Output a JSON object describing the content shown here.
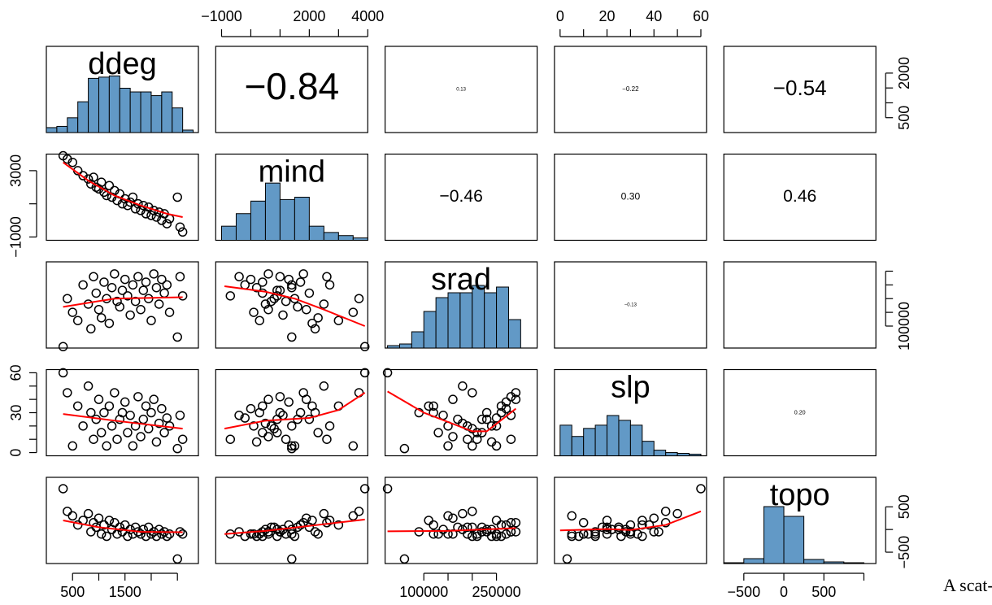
{
  "chart_data": {
    "type": "scatter_matrix",
    "point_color": "#000000",
    "smooth_color": "#ff0000",
    "hist_color": "#6299c6",
    "caption": "A scat-",
    "variables": [
      {
        "name": "ddeg",
        "lim": [
          0,
          2900
        ],
        "xticks": [
          500,
          {
            "value": 1000,
            "label": null
          },
          1500,
          {
            "value": 2000,
            "label": null
          },
          {
            "value": 2500,
            "label": null
          }
        ],
        "yticks": [
          500,
          {
            "value": 1000,
            "label": null
          },
          {
            "value": 1500,
            "label": null
          },
          2000
        ],
        "values": [
          320,
          400,
          500,
          600,
          700,
          800,
          850,
          900,
          950,
          1000,
          1050,
          1100,
          1150,
          1200,
          1250,
          1300,
          1350,
          1400,
          1450,
          1500,
          1550,
          1600,
          1650,
          1700,
          1750,
          1800,
          1850,
          1900,
          1950,
          2000,
          2050,
          2100,
          2150,
          2200,
          2250,
          2300,
          2350,
          2500,
          2550,
          2600
        ],
        "hist": {
          "bins": [
            0,
            200,
            400,
            600,
            800,
            1000,
            1200,
            1400,
            1600,
            1800,
            2000,
            2200,
            2400,
            2600,
            2800
          ],
          "counts": [
            4,
            5,
            12,
            25,
            44,
            45,
            46,
            36,
            33,
            33,
            30,
            33,
            20,
            2
          ],
          "ylim": [
            0,
            70
          ]
        }
      },
      {
        "name": "mind",
        "lim": [
          -1200,
          4000
        ],
        "xticks": [
          {
            "value": -1000,
            "label": "−1000"
          },
          {
            "value": 0,
            "label": null
          },
          {
            "value": 1000,
            "label": null
          },
          2000,
          {
            "value": 3000,
            "label": null
          },
          4000
        ],
        "yticks": [
          {
            "value": -1000,
            "label": "−1000"
          },
          {
            "value": 1000,
            "label": null
          },
          3000
        ],
        "values": [
          3900,
          3700,
          3500,
          3000,
          2700,
          2500,
          2200,
          2600,
          2000,
          1900,
          2300,
          1700,
          1500,
          2100,
          1400,
          1800,
          1200,
          1600,
          1000,
          1300,
          900,
          1100,
          1400,
          700,
          1000,
          600,
          900,
          400,
          800,
          300,
          600,
          200,
          500,
          0,
          400,
          -200,
          100,
          1400,
          -400,
          -700
        ],
        "hist": {
          "bins": [
            -1000,
            -500,
            0,
            500,
            1000,
            1500,
            2000,
            2500,
            3000,
            3500,
            4000
          ],
          "counts": [
            18,
            34,
            50,
            73,
            52,
            55,
            18,
            10,
            6,
            3
          ],
          "ylim": [
            0,
            110
          ]
        }
      },
      {
        "name": "srad",
        "lim": [
          20000,
          334000
        ],
        "xticks": [
          100000,
          {
            "value": 150000,
            "label": null
          },
          {
            "value": 200000,
            "label": null
          },
          250000
        ],
        "yticks": [
          100000,
          {
            "value": 150000,
            "label": null
          },
          {
            "value": 200000,
            "label": null
          },
          {
            "value": 250000,
            "label": null
          },
          {
            "value": 300000,
            "label": null
          }
        ],
        "values": [
          25000,
          200000,
          150000,
          120000,
          250000,
          180000,
          90000,
          280000,
          220000,
          160000,
          130000,
          260000,
          200000,
          110000,
          240000,
          290000,
          190000,
          170000,
          230000,
          270000,
          210000,
          140000,
          250000,
          190000,
          280000,
          160000,
          230000,
          260000,
          200000,
          120000,
          290000,
          240000,
          180000,
          270000,
          220000,
          250000,
          150000,
          60000,
          280000,
          210000
        ],
        "hist": {
          "bins": [
            25000,
            50000,
            75000,
            100000,
            125000,
            150000,
            175000,
            200000,
            225000,
            250000,
            275000,
            300000
          ],
          "counts": [
            3,
            5,
            20,
            45,
            62,
            68,
            68,
            77,
            68,
            75,
            35
          ],
          "ylim": [
            0,
            106
          ]
        }
      },
      {
        "name": "slp",
        "lim": [
          -2.4,
          62.4
        ],
        "xticks": [
          0,
          {
            "value": 10,
            "label": null
          },
          20,
          {
            "value": 30,
            "label": null
          },
          40,
          {
            "value": 50,
            "label": null
          },
          60
        ],
        "yticks": [
          0,
          {
            "value": 10,
            "label": null
          },
          {
            "value": 20,
            "label": null
          },
          30,
          {
            "value": 40,
            "label": null
          },
          {
            "value": 50,
            "label": null
          },
          60
        ],
        "values": [
          60,
          45,
          5,
          35,
          20,
          50,
          30,
          10,
          25,
          40,
          15,
          30,
          5,
          35,
          20,
          45,
          10,
          25,
          30,
          38,
          15,
          28,
          5,
          20,
          42,
          12,
          25,
          35,
          18,
          30,
          40,
          8,
          22,
          33,
          15,
          26,
          20,
          3,
          28,
          10
        ],
        "hist": {
          "bins": [
            0,
            5,
            10,
            15,
            20,
            25,
            30,
            35,
            40,
            45,
            50,
            55,
            60
          ],
          "counts": [
            38,
            24,
            34,
            38,
            50,
            44,
            38,
            18,
            7,
            4,
            3,
            2
          ],
          "ylim": [
            0,
            107
          ]
        }
      },
      {
        "name": "topo",
        "lim": [
          -750,
          1150
        ],
        "xticks": [
          {
            "value": -500,
            "label": "−500"
          },
          0,
          500,
          {
            "value": 1000,
            "label": null
          }
        ],
        "yticks": [
          {
            "value": -500,
            "label": "−500"
          },
          {
            "value": 0,
            "label": null
          },
          500
        ],
        "values": [
          900,
          400,
          300,
          100,
          200,
          350,
          -50,
          150,
          50,
          250,
          -100,
          100,
          -150,
          200,
          0,
          150,
          -100,
          50,
          -50,
          100,
          -150,
          0,
          -100,
          50,
          -50,
          -100,
          0,
          -150,
          50,
          -100,
          -50,
          -150,
          0,
          -100,
          -50,
          -150,
          -100,
          -650,
          -50,
          -100
        ],
        "hist": {
          "bins": [
            -750,
            -500,
            -250,
            0,
            250,
            500,
            750,
            1000
          ],
          "counts": [
            1,
            6,
            70,
            58,
            5,
            2,
            1
          ],
          "ylim": [
            0,
            106
          ]
        }
      }
    ],
    "correlations": {
      "values": [
        -0.84,
        0.13,
        -0.22,
        -0.54,
        -0.46,
        0.3,
        0.46,
        -0.13,
        null,
        0.2
      ],
      "value_labels": [
        "−0.84",
        "0.13",
        "−0.22",
        "−0.54",
        "−0.46",
        "0.30",
        "0.46",
        "−0.13",
        null,
        "0.20"
      ]
    },
    "smooth_lines": [
      {
        "x": [
          320,
          800,
          1300,
          1800,
          2300,
          2600
        ],
        "y": [
          3500,
          2400,
          1500,
          900,
          400,
          200
        ]
      },
      {
        "x": [
          320,
          1300,
          2600
        ],
        "y": [
          170000,
          200000,
          205000
        ]
      },
      {
        "x": [
          -900,
          500,
          1500,
          2500,
          3900
        ],
        "y": [
          245000,
          225000,
          200000,
          160000,
          100000
        ]
      },
      {
        "x": [
          320,
          1300,
          2600
        ],
        "y": [
          29,
          24,
          18
        ]
      },
      {
        "x": [
          -900,
          500,
          2000,
          3000,
          3900
        ],
        "y": [
          18,
          24,
          26,
          32,
          45
        ]
      },
      {
        "x": [
          25000,
          100000,
          200000,
          230000,
          290000
        ],
        "y": [
          46,
          30,
          16,
          16,
          33
        ]
      },
      {
        "x": [
          320,
          1000,
          1800,
          2600
        ],
        "y": [
          200,
          50,
          -50,
          -60
        ]
      },
      {
        "x": [
          -900,
          500,
          2000,
          3900
        ],
        "y": [
          -100,
          -30,
          80,
          220
        ]
      },
      {
        "x": [
          25000,
          150000,
          290000
        ],
        "y": [
          -40,
          -30,
          30
        ]
      },
      {
        "x": [
          0,
          20,
          30,
          45,
          60
        ],
        "y": [
          -20,
          10,
          -10,
          100,
          400
        ]
      }
    ]
  }
}
